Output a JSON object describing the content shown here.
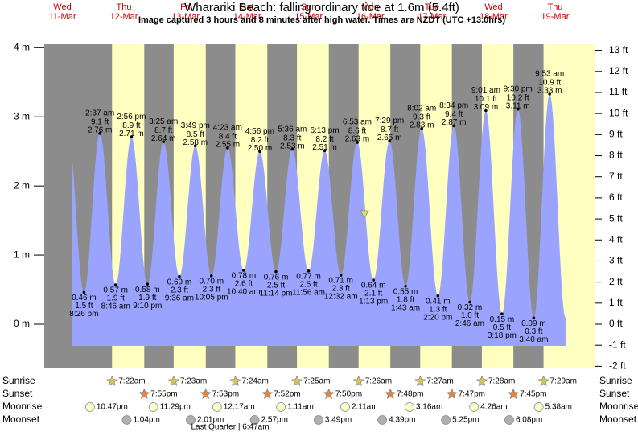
{
  "chart_data": {
    "type": "area",
    "title": "Wharariki Beach: falling  ordinary tide at 1.6m (5.4ft)",
    "subtitle": "Image captured 3 hours and 8 minutes after high water. Times are NZDT (UTC +13.0hrs)",
    "days": [
      {
        "weekday": "Wed",
        "date": "11-Mar"
      },
      {
        "weekday": "Thu",
        "date": "12-Mar"
      },
      {
        "weekday": "Fri",
        "date": "13-Mar"
      },
      {
        "weekday": "Sat",
        "date": "14-Mar"
      },
      {
        "weekday": "Sun",
        "date": "15-Mar"
      },
      {
        "weekday": "Mon",
        "date": "16-Mar"
      },
      {
        "weekday": "Tue",
        "date": "17-Mar"
      },
      {
        "weekday": "Wed",
        "date": "18-Mar"
      },
      {
        "weekday": "Thu",
        "date": "19-Mar"
      }
    ],
    "times": [
      "8:26 pm",
      "2:37 am",
      "8:46 am",
      "2:56 pm",
      "9:10 pm",
      "3:25 am",
      "9:36 am",
      "3:49 pm",
      "10:05 pm",
      "4:23 am",
      "10:40 am",
      "4:56 pm",
      "11:14 pm",
      "5:36 am",
      "11:56 am",
      "6:13 pm",
      "12:32 am",
      "6:53 am",
      "1:13 pm",
      "7:29 pm",
      "1:43 am",
      "8:02 am",
      "2:20 pm",
      "8:34 pm",
      "2:46 am",
      "9:01 am",
      "3:18 pm",
      "9:30 pm",
      "3:40 am",
      "9:53 am"
    ],
    "values": [
      0.46,
      2.76,
      0.57,
      2.71,
      0.58,
      2.64,
      0.69,
      2.58,
      0.7,
      2.55,
      0.78,
      2.5,
      0.76,
      2.53,
      0.77,
      2.51,
      0.71,
      2.63,
      0.64,
      2.65,
      0.55,
      2.83,
      0.41,
      2.87,
      0.32,
      3.09,
      0.15,
      3.11,
      0.09,
      3.33
    ],
    "value_labels": [
      "0.46 m",
      "2.76 m",
      "0.57 m",
      "2.71 m",
      "0.58 m",
      "2.64 m",
      "0.69 m",
      "2.58 m",
      "0.70 m",
      "2.55 m",
      "0.78 m",
      "2.50 m",
      "0.76 m",
      "2.53 m",
      "0.77 m",
      "2.51 m",
      "0.71 m",
      "2.63 m",
      "0.64 m",
      "2.65 m",
      "0.55 m",
      "2.83 m",
      "0.41 m",
      "2.87 m",
      "0.32 m",
      "3.09 m",
      "0.15 m",
      "3.11 m",
      "0.09 m",
      "3.33 m"
    ],
    "ft_labels": [
      "1.5 ft",
      "9.1 ft",
      "1.9 ft",
      "8.9 ft",
      "1.9 ft",
      "8.7 ft",
      "2.3 ft",
      "8.5 ft",
      "2.3 ft",
      "8.4 ft",
      "2.6 ft",
      "8.2 ft",
      "2.5 ft",
      "8.3 ft",
      "2.5 ft",
      "8.2 ft",
      "2.3 ft",
      "8.6 ft",
      "2.1 ft",
      "8.7 ft",
      "1.8 ft",
      "9.3 ft",
      "1.3 ft",
      "9.4 ft",
      "1.0 ft",
      "10.1 ft",
      "0.5 ft",
      "10.2 ft",
      "0.3 ft",
      "10.9 ft"
    ],
    "ylim": [
      -0.64,
      4.05
    ],
    "yticks": [
      {
        "value": 0,
        "label": "0 m"
      },
      {
        "value": 1,
        "label": "1 m"
      },
      {
        "value": 2,
        "label": "2 m"
      },
      {
        "value": 3,
        "label": "3 m"
      },
      {
        "value": 4,
        "label": "4 m"
      }
    ],
    "y2lim": [
      -2.1,
      13.29
    ],
    "y2ticks": [
      {
        "value": -2,
        "label": "-2 ft"
      },
      {
        "value": -1,
        "label": "-1 ft"
      },
      {
        "value": 0,
        "label": "0 ft"
      },
      {
        "value": 1,
        "label": "1 ft"
      },
      {
        "value": 2,
        "label": "2 ft"
      },
      {
        "value": 3,
        "label": "3 ft"
      },
      {
        "value": 4,
        "label": "4 ft"
      },
      {
        "value": 5,
        "label": "5 ft"
      },
      {
        "value": 6,
        "label": "6 ft"
      },
      {
        "value": 7,
        "label": "7 ft"
      },
      {
        "value": 8,
        "label": "8 ft"
      },
      {
        "value": 9,
        "label": "9 ft"
      },
      {
        "value": 10,
        "label": "10 ft"
      },
      {
        "value": 11,
        "label": "11 ft"
      },
      {
        "value": 12,
        "label": "12 ft"
      },
      {
        "value": 13,
        "label": "13 ft"
      }
    ],
    "colors": {
      "night": "#8c8c8c",
      "day": "#ffffc0",
      "water": "#9aa4ff"
    },
    "rows": [
      {
        "name": "Sunrise",
        "icon": "star",
        "color": "#d6c65a",
        "events": [
          {
            "date": "12-Mar",
            "time": "7:22am"
          },
          {
            "date": "13-Mar",
            "time": "7:23am"
          },
          {
            "date": "14-Mar",
            "time": "7:24am"
          },
          {
            "date": "15-Mar",
            "time": "7:25am"
          },
          {
            "date": "16-Mar",
            "time": "7:26am"
          },
          {
            "date": "17-Mar",
            "time": "7:27am"
          },
          {
            "date": "18-Mar",
            "time": "7:28am"
          },
          {
            "date": "19-Mar",
            "time": "7:29am"
          }
        ]
      },
      {
        "name": "Sunset",
        "icon": "star",
        "color": "#e8843c",
        "events": [
          {
            "date": "12-Mar",
            "time": "7:55pm"
          },
          {
            "date": "13-Mar",
            "time": "7:53pm"
          },
          {
            "date": "14-Mar",
            "time": "7:52pm"
          },
          {
            "date": "15-Mar",
            "time": "7:50pm"
          },
          {
            "date": "16-Mar",
            "time": "7:48pm"
          },
          {
            "date": "17-Mar",
            "time": "7:47pm"
          },
          {
            "date": "18-Mar",
            "time": "7:45pm"
          }
        ]
      },
      {
        "name": "Moonrise",
        "icon": "circle",
        "color": "#ffffcc",
        "events": [
          {
            "date": "11-Mar",
            "time": "10:47pm"
          },
          {
            "date": "12-Mar",
            "time": "11:29pm"
          },
          {
            "date": "14-Mar",
            "time": "12:17am"
          },
          {
            "date": "15-Mar",
            "time": "1:11am"
          },
          {
            "date": "16-Mar",
            "time": "2:11am"
          },
          {
            "date": "17-Mar",
            "time": "3:16am"
          },
          {
            "date": "18-Mar",
            "time": "4:26am"
          },
          {
            "date": "19-Mar",
            "time": "5:38am"
          }
        ]
      },
      {
        "name": "Moonset",
        "icon": "circle",
        "color": "#b0b0b0",
        "events": [
          {
            "date": "12-Mar",
            "time": "1:04pm"
          },
          {
            "date": "13-Mar",
            "time": "2:01pm"
          },
          {
            "date": "14-Mar",
            "time": "2:57pm"
          },
          {
            "date": "15-Mar",
            "time": "3:49pm"
          },
          {
            "date": "16-Mar",
            "time": "4:39pm"
          },
          {
            "date": "17-Mar",
            "time": "5:25pm"
          },
          {
            "date": "18-Mar",
            "time": "6:08pm"
          }
        ]
      }
    ],
    "note": "Last Quarter | 6:47am"
  }
}
